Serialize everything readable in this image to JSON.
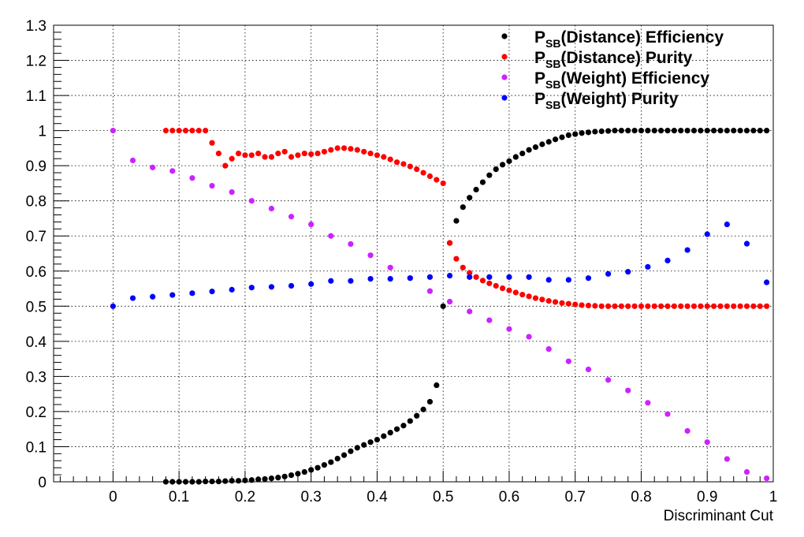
{
  "chart_data": {
    "type": "scatter",
    "title": "",
    "xlabel": "Discriminant Cut",
    "ylabel": "",
    "xlim": [
      -0.09,
      1.0
    ],
    "ylim": [
      0,
      1.3
    ],
    "x_ticks": [
      "0",
      "0.1",
      "0.2",
      "0.3",
      "0.4",
      "0.5",
      "0.6",
      "0.7",
      "0.8",
      "0.9",
      "1"
    ],
    "y_ticks": [
      "0",
      "0.1",
      "0.2",
      "0.3",
      "0.4",
      "0.5",
      "0.6",
      "0.7",
      "0.8",
      "0.9",
      "1",
      "1.1",
      "1.2",
      "1.3"
    ],
    "grid": true,
    "legend_position": "top-right",
    "series": [
      {
        "name_main": "P",
        "name_sub": "SB",
        "name_rest": "(Distance) Efficiency",
        "color": "#000000",
        "x": [
          0.08,
          0.09,
          0.1,
          0.11,
          0.12,
          0.13,
          0.14,
          0.15,
          0.16,
          0.17,
          0.18,
          0.19,
          0.2,
          0.21,
          0.22,
          0.23,
          0.24,
          0.25,
          0.26,
          0.27,
          0.28,
          0.29,
          0.3,
          0.31,
          0.32,
          0.33,
          0.34,
          0.35,
          0.36,
          0.37,
          0.38,
          0.39,
          0.4,
          0.41,
          0.42,
          0.43,
          0.44,
          0.45,
          0.46,
          0.47,
          0.48,
          0.49,
          0.5,
          0.51,
          0.52,
          0.53,
          0.54,
          0.55,
          0.56,
          0.57,
          0.58,
          0.59,
          0.6,
          0.61,
          0.62,
          0.63,
          0.64,
          0.65,
          0.66,
          0.67,
          0.68,
          0.69,
          0.7,
          0.71,
          0.72,
          0.73,
          0.74,
          0.75,
          0.76,
          0.77,
          0.78,
          0.79,
          0.8,
          0.81,
          0.82,
          0.83,
          0.84,
          0.85,
          0.86,
          0.87,
          0.88,
          0.89,
          0.9,
          0.91,
          0.92,
          0.93,
          0.94,
          0.95,
          0.96,
          0.97,
          0.98,
          0.99
        ],
        "y": [
          0,
          0,
          0,
          0,
          0,
          0,
          0.001,
          0.001,
          0.001,
          0.002,
          0.003,
          0.003,
          0.004,
          0.005,
          0.007,
          0.008,
          0.01,
          0.012,
          0.015,
          0.019,
          0.023,
          0.028,
          0.034,
          0.04,
          0.048,
          0.056,
          0.066,
          0.076,
          0.087,
          0.097,
          0.105,
          0.113,
          0.12,
          0.13,
          0.14,
          0.15,
          0.16,
          0.173,
          0.188,
          0.206,
          0.228,
          0.275,
          0.5,
          0.68,
          0.743,
          0.782,
          0.809,
          0.832,
          0.853,
          0.873,
          0.89,
          0.903,
          0.913,
          0.925,
          0.935,
          0.945,
          0.953,
          0.961,
          0.968,
          0.975,
          0.981,
          0.987,
          0.99,
          0.993,
          0.995,
          0.997,
          0.998,
          0.999,
          1,
          1,
          1,
          1,
          1,
          1,
          1,
          1,
          1,
          1,
          1,
          1,
          1,
          1,
          1,
          1,
          1,
          1,
          1,
          1,
          1,
          1,
          1,
          1
        ]
      },
      {
        "name_main": "P",
        "name_sub": "SB",
        "name_rest": "(Distance) Purity",
        "color": "#ff0000",
        "x": [
          0.08,
          0.09,
          0.1,
          0.11,
          0.12,
          0.13,
          0.14,
          0.15,
          0.16,
          0.17,
          0.18,
          0.19,
          0.2,
          0.21,
          0.22,
          0.23,
          0.24,
          0.25,
          0.26,
          0.27,
          0.28,
          0.29,
          0.3,
          0.31,
          0.32,
          0.33,
          0.34,
          0.35,
          0.36,
          0.37,
          0.38,
          0.39,
          0.4,
          0.41,
          0.42,
          0.43,
          0.44,
          0.45,
          0.46,
          0.47,
          0.48,
          0.49,
          0.5,
          0.51,
          0.52,
          0.53,
          0.54,
          0.55,
          0.56,
          0.57,
          0.58,
          0.59,
          0.6,
          0.61,
          0.62,
          0.63,
          0.64,
          0.65,
          0.66,
          0.67,
          0.68,
          0.69,
          0.7,
          0.71,
          0.72,
          0.73,
          0.74,
          0.75,
          0.76,
          0.77,
          0.78,
          0.79,
          0.8,
          0.81,
          0.82,
          0.83,
          0.84,
          0.85,
          0.86,
          0.87,
          0.88,
          0.89,
          0.9,
          0.91,
          0.92,
          0.93,
          0.94,
          0.95,
          0.96,
          0.97,
          0.98,
          0.99
        ],
        "y": [
          1,
          1,
          1,
          1,
          1,
          1,
          1,
          0.965,
          0.935,
          0.9,
          0.92,
          0.935,
          0.93,
          0.93,
          0.935,
          0.925,
          0.925,
          0.935,
          0.94,
          0.925,
          0.93,
          0.935,
          0.933,
          0.935,
          0.94,
          0.945,
          0.95,
          0.95,
          0.948,
          0.945,
          0.94,
          0.935,
          0.93,
          0.925,
          0.918,
          0.91,
          0.905,
          0.898,
          0.89,
          0.88,
          0.87,
          0.86,
          0.85,
          0.68,
          0.635,
          0.61,
          0.595,
          0.583,
          0.573,
          0.565,
          0.558,
          0.551,
          0.545,
          0.539,
          0.533,
          0.528,
          0.523,
          0.519,
          0.515,
          0.512,
          0.509,
          0.507,
          0.505,
          0.503,
          0.502,
          0.501,
          0.5,
          0.5,
          0.5,
          0.5,
          0.5,
          0.5,
          0.5,
          0.5,
          0.5,
          0.5,
          0.5,
          0.5,
          0.5,
          0.5,
          0.5,
          0.5,
          0.5,
          0.5,
          0.5,
          0.5,
          0.5,
          0.5,
          0.5,
          0.5,
          0.5,
          0.5
        ]
      },
      {
        "name_main": "P",
        "name_sub": "SB",
        "name_rest": "(Weight) Efficiency",
        "color": "#cc22ff",
        "x": [
          0,
          0.03,
          0.06,
          0.09,
          0.12,
          0.15,
          0.18,
          0.21,
          0.24,
          0.27,
          0.3,
          0.33,
          0.36,
          0.39,
          0.42,
          0.45,
          0.48,
          0.51,
          0.54,
          0.57,
          0.6,
          0.63,
          0.66,
          0.69,
          0.72,
          0.75,
          0.78,
          0.81,
          0.84,
          0.87,
          0.9,
          0.93,
          0.96,
          0.99
        ],
        "y": [
          1,
          0.915,
          0.895,
          0.885,
          0.865,
          0.843,
          0.825,
          0.8,
          0.778,
          0.755,
          0.733,
          0.7,
          0.677,
          0.645,
          0.61,
          0.58,
          0.543,
          0.513,
          0.485,
          0.46,
          0.435,
          0.413,
          0.378,
          0.343,
          0.32,
          0.29,
          0.26,
          0.225,
          0.193,
          0.145,
          0.113,
          0.065,
          0.028,
          0.01
        ]
      },
      {
        "name_main": "P",
        "name_sub": "SB",
        "name_rest": "(Weight) Purity",
        "color": "#0000ff",
        "x": [
          0,
          0.03,
          0.06,
          0.09,
          0.12,
          0.15,
          0.18,
          0.21,
          0.24,
          0.27,
          0.3,
          0.33,
          0.36,
          0.39,
          0.42,
          0.45,
          0.48,
          0.51,
          0.54,
          0.57,
          0.6,
          0.63,
          0.66,
          0.69,
          0.72,
          0.75,
          0.78,
          0.81,
          0.84,
          0.87,
          0.9,
          0.93,
          0.96,
          0.99
        ],
        "y": [
          0.5,
          0.523,
          0.527,
          0.532,
          0.537,
          0.542,
          0.547,
          0.553,
          0.555,
          0.558,
          0.563,
          0.572,
          0.572,
          0.578,
          0.578,
          0.58,
          0.583,
          0.587,
          0.583,
          0.583,
          0.583,
          0.583,
          0.575,
          0.575,
          0.58,
          0.592,
          0.598,
          0.612,
          0.63,
          0.66,
          0.705,
          0.733,
          0.678,
          0.568
        ]
      }
    ]
  }
}
